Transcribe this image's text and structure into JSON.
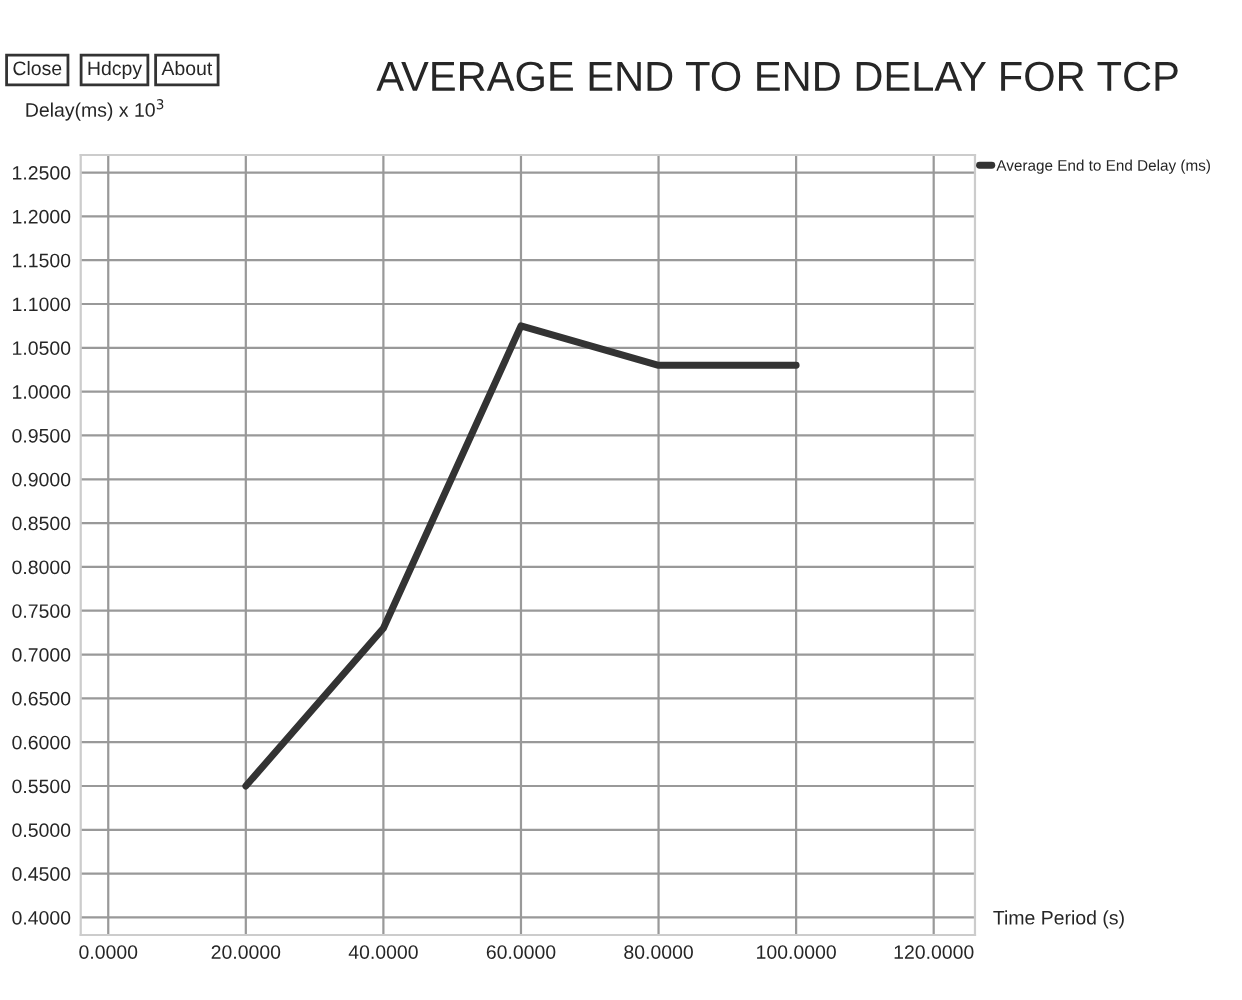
{
  "chart_data": {
    "type": "line",
    "title": "AVERAGE END TO END DELAY FOR TCP",
    "xlabel": "Time Period (s)",
    "ylabel": "Delay(ms) x 10$^{3}$",
    "annotations": [
      "Close",
      "Hdcpy",
      "About"
    ],
    "x": [
      20,
      40,
      60,
      80,
      100
    ],
    "series": [
      {
        "name": "Average End to End Delay (ms)",
        "color": "#333333",
        "values": [
          0.55,
          0.73,
          1.075,
          1.03,
          1.03
        ]
      }
    ],
    "xlim": [
      -4,
      126
    ],
    "xticks": [
      {
        "value": 0,
        "label": "0.0000"
      },
      {
        "value": 20,
        "label": "20.0000"
      },
      {
        "value": 40,
        "label": "40.0000"
      },
      {
        "value": 60,
        "label": "60.0000"
      },
      {
        "value": 80,
        "label": "80.0000"
      },
      {
        "value": 100,
        "label": "100.0000"
      },
      {
        "value": 120,
        "label": "120.0000"
      }
    ],
    "ylim": [
      0.38,
      1.27
    ],
    "yticks": [
      {
        "value": 0.4,
        "label": "0.4000"
      },
      {
        "value": 0.45,
        "label": "0.4500"
      },
      {
        "value": 0.5,
        "label": "0.5000"
      },
      {
        "value": 0.55,
        "label": "0.5500"
      },
      {
        "value": 0.6,
        "label": "0.6000"
      },
      {
        "value": 0.65,
        "label": "0.6500"
      },
      {
        "value": 0.7,
        "label": "0.7000"
      },
      {
        "value": 0.75,
        "label": "0.7500"
      },
      {
        "value": 0.8,
        "label": "0.8000"
      },
      {
        "value": 0.85,
        "label": "0.8500"
      },
      {
        "value": 0.9,
        "label": "0.9000"
      },
      {
        "value": 0.95,
        "label": "0.9500"
      },
      {
        "value": 1.0,
        "label": "1.0000"
      },
      {
        "value": 1.05,
        "label": "1.0500"
      },
      {
        "value": 1.1,
        "label": "1.1000"
      },
      {
        "value": 1.15,
        "label": "1.1500"
      },
      {
        "value": 1.2,
        "label": "1.2000"
      },
      {
        "value": 1.25,
        "label": "1.2500"
      }
    ],
    "grid": true,
    "legend": "top right",
    "marker": "none",
    "line_style": "solid"
  }
}
